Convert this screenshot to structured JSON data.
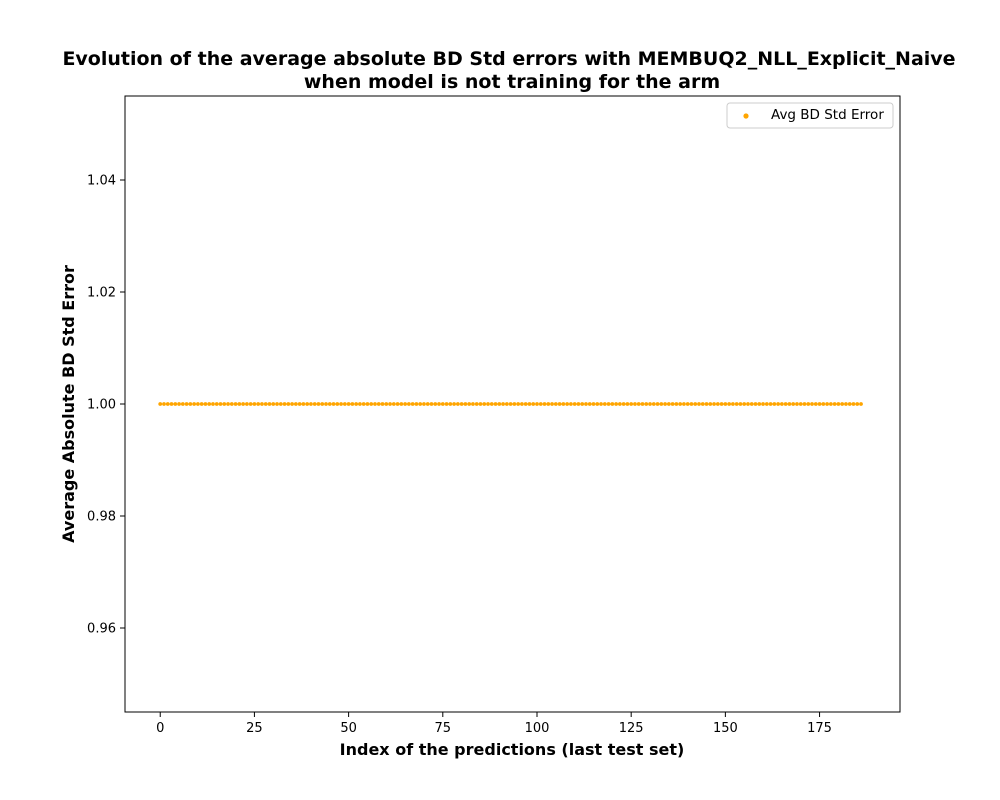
{
  "chart_data": {
    "type": "scatter",
    "title_lines": [
      "Evolution of the average absolute BD Std errors with MEMBUQ2_NLL_Explicit_Naive",
      "when model is not training for the arm"
    ],
    "xlabel": "Index of the predictions (last test set)",
    "ylabel": "Average Absolute BD Std Error",
    "xlim": [
      -9.35,
      196.35
    ],
    "ylim": [
      0.945,
      1.055
    ],
    "xticks": [
      0,
      25,
      50,
      75,
      100,
      125,
      150,
      175
    ],
    "xtick_labels": [
      "0",
      "25",
      "50",
      "75",
      "100",
      "125",
      "150",
      "175"
    ],
    "yticks": [
      0.96,
      0.98,
      1.0,
      1.02,
      1.04
    ],
    "ytick_labels": [
      "0.96",
      "0.98",
      "1.00",
      "1.02",
      "1.04"
    ],
    "grid": false,
    "legend_position": "upper-right",
    "series": [
      {
        "name": "Avg BD Std Error",
        "color": "#ffa500",
        "x_start": 0,
        "x_end": 186,
        "x_step": 1,
        "y_constant": 1.0
      }
    ]
  }
}
